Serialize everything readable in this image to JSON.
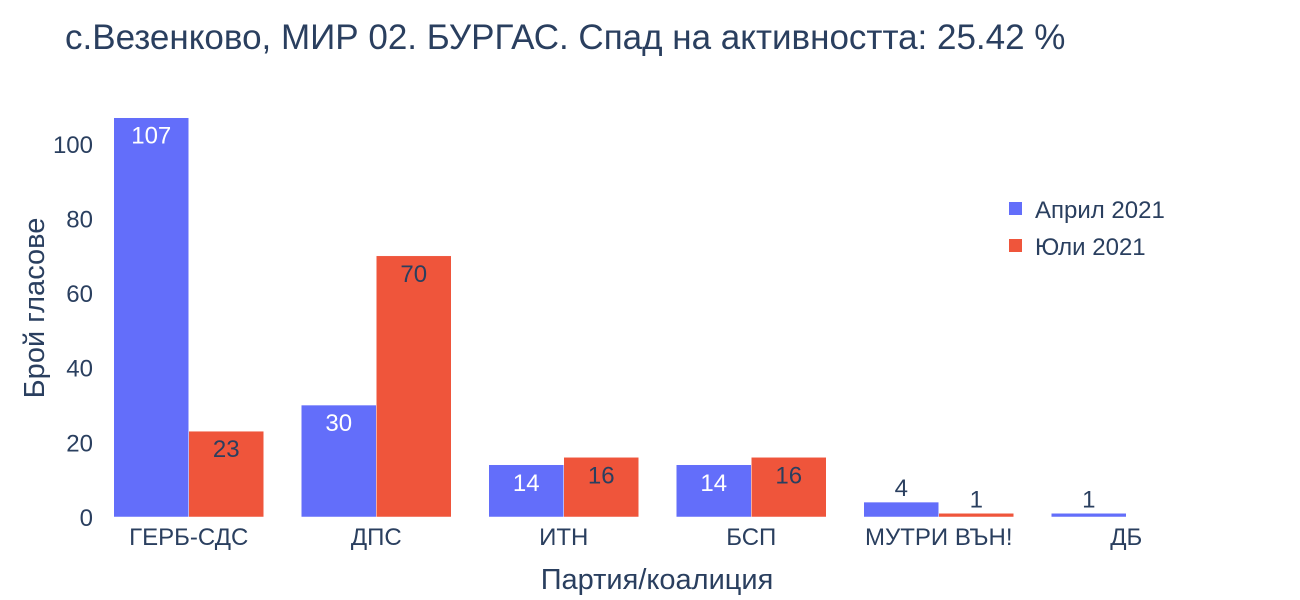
{
  "chart_data": {
    "type": "bar",
    "title": "с.Везенково, МИР 02. БУРГАС. Спад на активността: 25.42 %",
    "xlabel": "Партия/коалиция",
    "ylabel": "Брой гласове",
    "categories": [
      "ГЕРБ-СДС",
      "ДПС",
      "ИТН",
      "БСП",
      "МУТРИ ВЪН!",
      "ДБ"
    ],
    "series": [
      {
        "name": "Април 2021",
        "values": [
          107,
          30,
          14,
          14,
          4,
          1
        ],
        "color": "#636efa"
      },
      {
        "name": "Юли 2021",
        "values": [
          23,
          70,
          16,
          16,
          1,
          0
        ],
        "color": "#ef553b"
      }
    ],
    "ylim": [
      0,
      108
    ],
    "yticks": [
      0,
      20,
      40,
      60,
      80,
      100
    ],
    "grid": false,
    "legend_position": "top-right",
    "text_color": "#2a3f5f"
  }
}
